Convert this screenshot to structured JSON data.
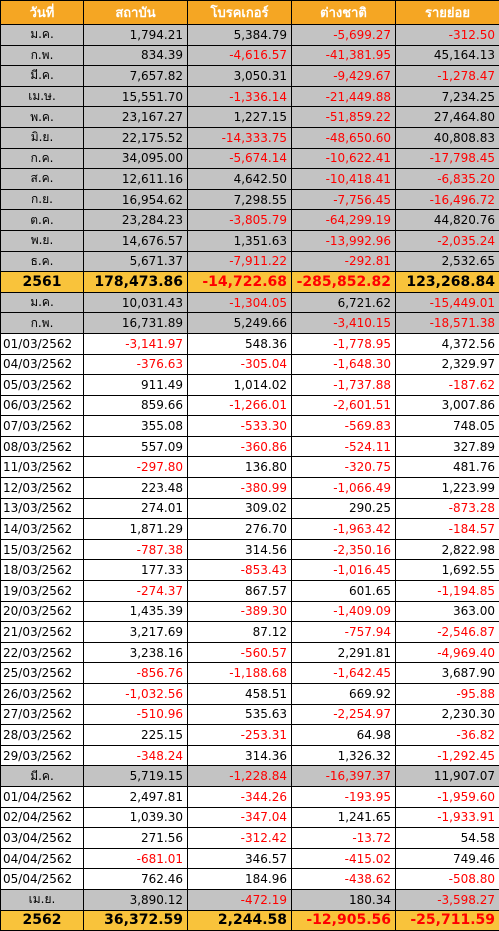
{
  "table": {
    "headers": [
      "วันที่",
      "สถาบัน",
      "โบรคเกอร์",
      "ต่างชาติ",
      "รายย่อย"
    ],
    "rows": [
      {
        "type": "monthly",
        "cells": [
          "ม.ค.",
          "1,794.21",
          "5,384.79",
          "-5,699.27",
          "-312.50"
        ]
      },
      {
        "type": "monthly",
        "cells": [
          "ก.พ.",
          "834.39",
          "-4,616.57",
          "-41,381.95",
          "45,164.13"
        ]
      },
      {
        "type": "monthly",
        "cells": [
          "มี.ค.",
          "7,657.82",
          "3,050.31",
          "-9,429.67",
          "-1,278.47"
        ]
      },
      {
        "type": "monthly",
        "cells": [
          "เม.ษ.",
          "15,551.70",
          "-1,336.14",
          "-21,449.88",
          "7,234.25"
        ]
      },
      {
        "type": "monthly",
        "cells": [
          "พ.ค.",
          "23,167.27",
          "1,227.15",
          "-51,859.22",
          "27,464.80"
        ]
      },
      {
        "type": "monthly",
        "cells": [
          "มิ.ย.",
          "22,175.52",
          "-14,333.75",
          "-48,650.60",
          "40,808.83"
        ]
      },
      {
        "type": "monthly",
        "cells": [
          "ก.ค.",
          "34,095.00",
          "-5,674.14",
          "-10,622.41",
          "-17,798.45"
        ]
      },
      {
        "type": "monthly",
        "cells": [
          "ส.ค.",
          "12,611.16",
          "4,642.50",
          "-10,418.41",
          "-6,835.20"
        ]
      },
      {
        "type": "monthly",
        "cells": [
          "ก.ย.",
          "16,954.62",
          "7,298.55",
          "-7,756.45",
          "-16,496.72"
        ]
      },
      {
        "type": "monthly",
        "cells": [
          "ต.ค.",
          "23,284.23",
          "-3,805.79",
          "-64,299.19",
          "44,820.76"
        ]
      },
      {
        "type": "monthly",
        "cells": [
          "พ.ย.",
          "14,676.57",
          "1,351.63",
          "-13,992.96",
          "-2,035.24"
        ]
      },
      {
        "type": "monthly",
        "cells": [
          "ธ.ค.",
          "5,671.37",
          "-7,911.22",
          "-292.81",
          "2,532.65"
        ]
      },
      {
        "type": "yearly",
        "cells": [
          "2561",
          "178,473.86",
          "-14,722.68",
          "-285,852.82",
          "123,268.84"
        ]
      },
      {
        "type": "monthly",
        "cells": [
          "ม.ค.",
          "10,031.43",
          "-1,304.05",
          "6,721.62",
          "-15,449.01"
        ]
      },
      {
        "type": "monthly",
        "cells": [
          "ก.พ.",
          "16,731.89",
          "5,249.66",
          "-3,410.15",
          "-18,571.38"
        ]
      },
      {
        "type": "daily",
        "cells": [
          "01/03/2562",
          "-3,141.97",
          "548.36",
          "-1,778.95",
          "4,372.56"
        ]
      },
      {
        "type": "daily",
        "cells": [
          "04/03/2562",
          "-376.63",
          "-305.04",
          "-1,648.30",
          "2,329.97"
        ]
      },
      {
        "type": "daily",
        "cells": [
          "05/03/2562",
          "911.49",
          "1,014.02",
          "-1,737.88",
          "-187.62"
        ]
      },
      {
        "type": "daily",
        "cells": [
          "06/03/2562",
          "859.66",
          "-1,266.01",
          "-2,601.51",
          "3,007.86"
        ]
      },
      {
        "type": "daily",
        "cells": [
          "07/03/2562",
          "355.08",
          "-533.30",
          "-569.83",
          "748.05"
        ]
      },
      {
        "type": "daily",
        "cells": [
          "08/03/2562",
          "557.09",
          "-360.86",
          "-524.11",
          "327.89"
        ]
      },
      {
        "type": "daily",
        "cells": [
          "11/03/2562",
          "-297.80",
          "136.80",
          "-320.75",
          "481.76"
        ]
      },
      {
        "type": "daily",
        "cells": [
          "12/03/2562",
          "223.48",
          "-380.99",
          "-1,066.49",
          "1,223.99"
        ]
      },
      {
        "type": "daily",
        "cells": [
          "13/03/2562",
          "274.01",
          "309.02",
          "290.25",
          "-873.28"
        ]
      },
      {
        "type": "daily",
        "cells": [
          "14/03/2562",
          "1,871.29",
          "276.70",
          "-1,963.42",
          "-184.57"
        ]
      },
      {
        "type": "daily",
        "cells": [
          "15/03/2562",
          "-787.38",
          "314.56",
          "-2,350.16",
          "2,822.98"
        ]
      },
      {
        "type": "daily",
        "cells": [
          "18/03/2562",
          "177.33",
          "-853.43",
          "-1,016.45",
          "1,692.55"
        ]
      },
      {
        "type": "daily",
        "cells": [
          "19/03/2562",
          "-274.37",
          "867.57",
          "601.65",
          "-1,194.85"
        ]
      },
      {
        "type": "daily",
        "cells": [
          "20/03/2562",
          "1,435.39",
          "-389.30",
          "-1,409.09",
          "363.00"
        ]
      },
      {
        "type": "daily",
        "cells": [
          "21/03/2562",
          "3,217.69",
          "87.12",
          "-757.94",
          "-2,546.87"
        ]
      },
      {
        "type": "daily",
        "cells": [
          "22/03/2562",
          "3,238.16",
          "-560.57",
          "2,291.81",
          "-4,969.40"
        ]
      },
      {
        "type": "daily",
        "cells": [
          "25/03/2562",
          "-856.76",
          "-1,188.68",
          "-1,642.45",
          "3,687.90"
        ]
      },
      {
        "type": "daily",
        "cells": [
          "26/03/2562",
          "-1,032.56",
          "458.51",
          "669.92",
          "-95.88"
        ]
      },
      {
        "type": "daily",
        "cells": [
          "27/03/2562",
          "-510.96",
          "535.63",
          "-2,254.97",
          "2,230.30"
        ]
      },
      {
        "type": "daily",
        "cells": [
          "28/03/2562",
          "225.15",
          "-253.31",
          "64.98",
          "-36.82"
        ]
      },
      {
        "type": "daily",
        "cells": [
          "29/03/2562",
          "-348.24",
          "314.36",
          "1,326.32",
          "-1,292.45"
        ]
      },
      {
        "type": "monthly",
        "cells": [
          "มี.ค.",
          "5,719.15",
          "-1,228.84",
          "-16,397.37",
          "11,907.07"
        ]
      },
      {
        "type": "daily",
        "cells": [
          "01/04/2562",
          "2,497.81",
          "-344.26",
          "-193.95",
          "-1,959.60"
        ]
      },
      {
        "type": "daily",
        "cells": [
          "02/04/2562",
          "1,039.30",
          "-347.04",
          "1,241.65",
          "-1,933.91"
        ]
      },
      {
        "type": "daily",
        "cells": [
          "03/04/2562",
          "271.56",
          "-312.42",
          "-13.72",
          "54.58"
        ]
      },
      {
        "type": "daily",
        "cells": [
          "04/04/2562",
          "-681.01",
          "346.57",
          "-415.02",
          "749.46"
        ]
      },
      {
        "type": "daily",
        "cells": [
          "05/04/2562",
          "762.46",
          "184.96",
          "-438.62",
          "-508.80"
        ]
      },
      {
        "type": "monthly",
        "cells": [
          "เม.ย.",
          "3,890.12",
          "-472.19",
          "180.34",
          "-3,598.27"
        ]
      },
      {
        "type": "yearly",
        "cells": [
          "2562",
          "36,372.59",
          "2,244.58",
          "-12,905.56",
          "-25,711.59"
        ]
      }
    ]
  },
  "colors": {
    "header_bg": "#f5a623",
    "monthly_bg": "#c3c3c3",
    "yearly_bg": "#f9c33b",
    "negative": "#ff0000",
    "positive": "#000000"
  }
}
